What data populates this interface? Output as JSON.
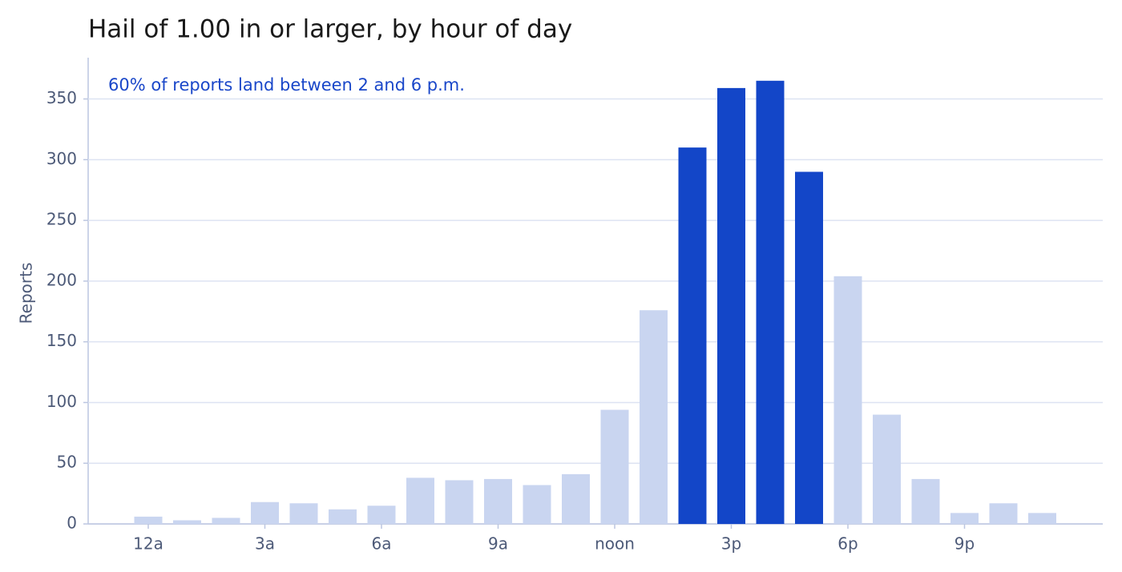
{
  "chart_data": {
    "type": "bar",
    "title": "Hail of 1.00 in or larger, by hour of day",
    "annotation": "60% of reports land between 2 and 6 p.m.",
    "ylabel": "Reports",
    "categories": [
      "12a",
      null,
      null,
      "3a",
      null,
      null,
      "6a",
      null,
      null,
      "9a",
      null,
      null,
      "noon",
      null,
      null,
      "3p",
      null,
      null,
      "6p",
      null,
      null,
      "9p",
      null,
      null
    ],
    "values": [
      6,
      3,
      5,
      18,
      17,
      12,
      15,
      38,
      36,
      37,
      32,
      41,
      94,
      176,
      310,
      359,
      365,
      290,
      204,
      90,
      37,
      9,
      17,
      9
    ],
    "colors": [
      "#c9d5f0",
      "#c9d5f0",
      "#c9d5f0",
      "#c9d5f0",
      "#c9d5f0",
      "#c9d5f0",
      "#c9d5f0",
      "#c9d5f0",
      "#c9d5f0",
      "#c9d5f0",
      "#c9d5f0",
      "#c9d5f0",
      "#c9d5f0",
      "#c9d5f0",
      "#1346c8",
      "#1346c8",
      "#1346c8",
      "#1346c8",
      "#c9d5f0",
      "#c9d5f0",
      "#c9d5f0",
      "#c9d5f0",
      "#c9d5f0",
      "#c9d5f0"
    ],
    "ylim": [
      0,
      384
    ],
    "yticks": [
      0,
      50,
      100,
      150,
      200,
      250,
      300,
      350
    ],
    "grid": true
  }
}
